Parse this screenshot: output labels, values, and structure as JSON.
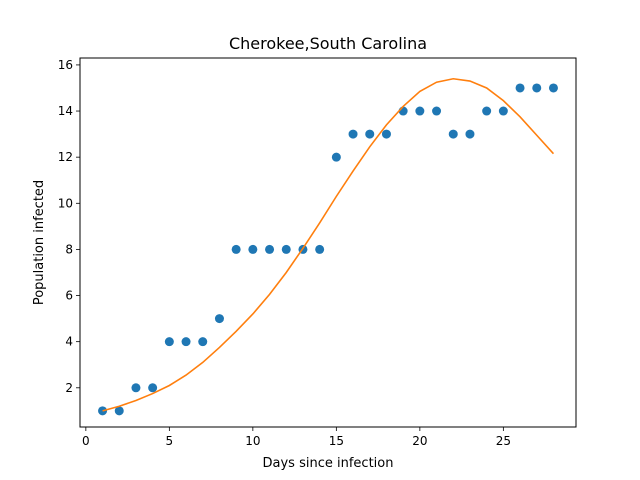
{
  "chart_data": {
    "type": "scatter",
    "title": "Cherokee,South Carolina",
    "xlabel": "Days since infection",
    "ylabel": "Population infected",
    "xlim": [
      -0.35,
      29.35
    ],
    "ylim": [
      0.3,
      16.3
    ],
    "xticks": [
      0,
      5,
      10,
      15,
      20,
      25
    ],
    "yticks": [
      2,
      4,
      6,
      8,
      10,
      12,
      14,
      16
    ],
    "grid": false,
    "series": [
      {
        "kind": "scatter",
        "color": "#1f77b4",
        "x": [
          1,
          2,
          3,
          4,
          5,
          6,
          7,
          8,
          9,
          10,
          11,
          12,
          13,
          14,
          15,
          16,
          17,
          18,
          19,
          20,
          21,
          22,
          23,
          24,
          25,
          26,
          27,
          28
        ],
        "y": [
          1,
          1,
          2,
          2,
          4,
          4,
          4,
          5,
          8,
          8,
          8,
          8,
          8,
          8,
          12,
          13,
          13,
          13,
          14,
          14,
          14,
          13,
          13,
          14,
          14,
          15,
          15,
          15
        ]
      },
      {
        "kind": "line",
        "color": "#ff7f0e",
        "x": [
          1,
          2,
          3,
          4,
          5,
          6,
          7,
          8,
          9,
          10,
          11,
          12,
          13,
          14,
          15,
          16,
          17,
          18,
          19,
          20,
          21,
          22,
          23,
          24,
          25,
          26,
          27,
          28
        ],
        "y": [
          1.0,
          1.2,
          1.45,
          1.75,
          2.1,
          2.55,
          3.1,
          3.75,
          4.45,
          5.2,
          6.05,
          7.0,
          8.05,
          9.15,
          10.3,
          11.4,
          12.45,
          13.4,
          14.2,
          14.85,
          15.25,
          15.4,
          15.3,
          15.0,
          14.45,
          13.75,
          12.95,
          12.15
        ]
      }
    ]
  }
}
